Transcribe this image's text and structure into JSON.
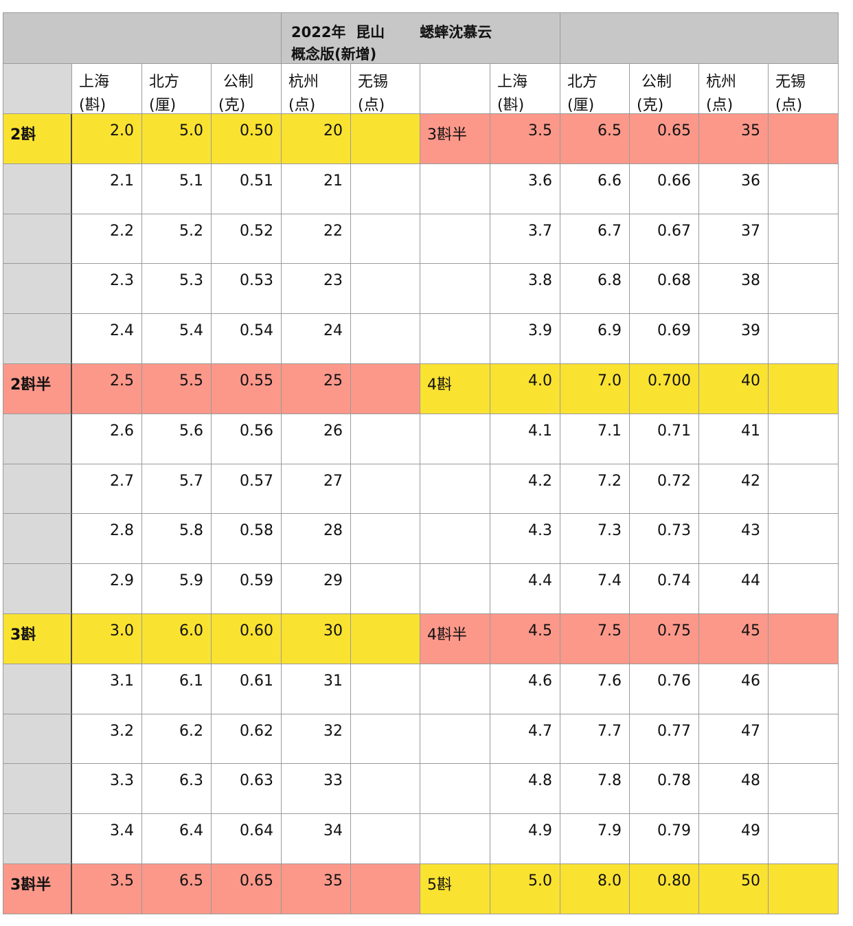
{
  "title": {
    "line1": "2022年  昆山       蟋蟀沈慕云",
    "line2": "概念版(新增)"
  },
  "headers": {
    "left": [
      "上海\n(斟)",
      "北方\n(厘)",
      " 公制\n(克)",
      "杭州\n(点)",
      "无锡\n(点)"
    ],
    "right": [
      "上海\n(斟)",
      "北方\n(厘)",
      " 公制\n(克)",
      "杭州\n(点)",
      "无锡\n(点)"
    ]
  },
  "colors": {
    "yellow": "#fae231",
    "red": "#fc988a",
    "grey_header": "#c6c7c6",
    "grey_side": "#d9d9d9"
  },
  "rows": [
    {
      "left_label": "2斟",
      "left_values": [
        "2.0",
        "5.0",
        "0.50",
        "20",
        ""
      ],
      "left_color": "yellow",
      "right_label": "3斟半",
      "right_values": [
        "3.5",
        "6.5",
        "0.65",
        "35",
        ""
      ],
      "right_color": "red"
    },
    {
      "left_label": "",
      "left_values": [
        "2.1",
        "5.1",
        "0.51",
        "21",
        ""
      ],
      "left_color": "white",
      "right_label": "",
      "right_values": [
        "3.6",
        "6.6",
        "0.66",
        "36",
        ""
      ],
      "right_color": "white"
    },
    {
      "left_label": "",
      "left_values": [
        "2.2",
        "5.2",
        "0.52",
        "22",
        ""
      ],
      "left_color": "white",
      "right_label": "",
      "right_values": [
        "3.7",
        "6.7",
        "0.67",
        "37",
        ""
      ],
      "right_color": "white"
    },
    {
      "left_label": "",
      "left_values": [
        "2.3",
        "5.3",
        "0.53",
        "23",
        ""
      ],
      "left_color": "white",
      "right_label": "",
      "right_values": [
        "3.8",
        "6.8",
        "0.68",
        "38",
        ""
      ],
      "right_color": "white"
    },
    {
      "left_label": "",
      "left_values": [
        "2.4",
        "5.4",
        "0.54",
        "24",
        ""
      ],
      "left_color": "white",
      "right_label": "",
      "right_values": [
        "3.9",
        "6.9",
        "0.69",
        "39",
        ""
      ],
      "right_color": "white"
    },
    {
      "left_label": "2斟半",
      "left_values": [
        "2.5",
        "5.5",
        "0.55",
        "25",
        ""
      ],
      "left_color": "red",
      "right_label": "4斟",
      "right_values": [
        "4.0",
        "7.0",
        "0.700",
        "40",
        ""
      ],
      "right_color": "yellow"
    },
    {
      "left_label": "",
      "left_values": [
        "2.6",
        "5.6",
        "0.56",
        "26",
        ""
      ],
      "left_color": "white",
      "right_label": "",
      "right_values": [
        "4.1",
        "7.1",
        "0.71",
        "41",
        ""
      ],
      "right_color": "white"
    },
    {
      "left_label": "",
      "left_values": [
        "2.7",
        "5.7",
        "0.57",
        "27",
        ""
      ],
      "left_color": "white",
      "right_label": "",
      "right_values": [
        "4.2",
        "7.2",
        "0.72",
        "42",
        ""
      ],
      "right_color": "white"
    },
    {
      "left_label": "",
      "left_values": [
        "2.8",
        "5.8",
        "0.58",
        "28",
        ""
      ],
      "left_color": "white",
      "right_label": "",
      "right_values": [
        "4.3",
        "7.3",
        "0.73",
        "43",
        ""
      ],
      "right_color": "white"
    },
    {
      "left_label": "",
      "left_values": [
        "2.9",
        "5.9",
        "0.59",
        "29",
        ""
      ],
      "left_color": "white",
      "right_label": "",
      "right_values": [
        "4.4",
        "7.4",
        "0.74",
        "44",
        ""
      ],
      "right_color": "white"
    },
    {
      "left_label": "3斟",
      "left_values": [
        "3.0",
        "6.0",
        "0.60",
        "30",
        ""
      ],
      "left_color": "yellow",
      "right_label": "4斟半",
      "right_values": [
        "4.5",
        "7.5",
        "0.75",
        "45",
        ""
      ],
      "right_color": "red"
    },
    {
      "left_label": "",
      "left_values": [
        "3.1",
        "6.1",
        "0.61",
        "31",
        ""
      ],
      "left_color": "white",
      "right_label": "",
      "right_values": [
        "4.6",
        "7.6",
        "0.76",
        "46",
        ""
      ],
      "right_color": "white"
    },
    {
      "left_label": "",
      "left_values": [
        "3.2",
        "6.2",
        "0.62",
        "32",
        ""
      ],
      "left_color": "white",
      "right_label": "",
      "right_values": [
        "4.7",
        "7.7",
        "0.77",
        "47",
        ""
      ],
      "right_color": "white"
    },
    {
      "left_label": "",
      "left_values": [
        "3.3",
        "6.3",
        "0.63",
        "33",
        ""
      ],
      "left_color": "white",
      "right_label": "",
      "right_values": [
        "4.8",
        "7.8",
        "0.78",
        "48",
        ""
      ],
      "right_color": "white"
    },
    {
      "left_label": "",
      "left_values": [
        "3.4",
        "6.4",
        "0.64",
        "34",
        ""
      ],
      "left_color": "white",
      "right_label": "",
      "right_values": [
        "4.9",
        "7.9",
        "0.79",
        "49",
        ""
      ],
      "right_color": "white"
    },
    {
      "left_label": "3斟半",
      "left_values": [
        "3.5",
        "6.5",
        "0.65",
        "35",
        ""
      ],
      "left_color": "red",
      "right_label": "5斟",
      "right_values": [
        "5.0",
        "8.0",
        "0.80",
        "50",
        ""
      ],
      "right_color": "yellow"
    }
  ]
}
